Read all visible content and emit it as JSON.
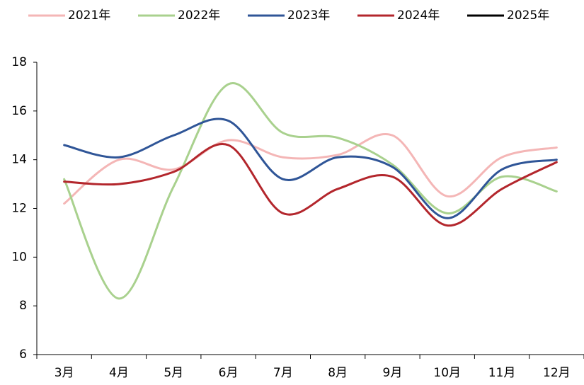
{
  "chart_data": {
    "type": "line",
    "categories": [
      "3月",
      "4月",
      "5月",
      "6月",
      "7月",
      "8月",
      "9月",
      "10月",
      "11月",
      "12月"
    ],
    "series": [
      {
        "name": "2021年",
        "color": "#f4b6b6",
        "values": [
          12.2,
          14.0,
          13.6,
          14.8,
          14.1,
          14.2,
          15.0,
          12.5,
          14.1,
          14.5
        ]
      },
      {
        "name": "2022年",
        "color": "#a9d18e",
        "values": [
          13.2,
          8.3,
          12.9,
          17.1,
          15.1,
          14.9,
          13.8,
          11.8,
          13.3,
          12.7
        ]
      },
      {
        "name": "2023年",
        "color": "#2f5597",
        "values": [
          14.6,
          14.1,
          15.0,
          15.6,
          13.2,
          14.1,
          13.7,
          11.6,
          13.6,
          14.0
        ]
      },
      {
        "name": "2024年",
        "color": "#b3262c",
        "values": [
          13.1,
          13.0,
          13.5,
          14.6,
          11.8,
          12.8,
          13.3,
          11.3,
          12.8,
          13.9
        ]
      },
      {
        "name": "2025年",
        "color": "#000000",
        "values": [
          null,
          null,
          null,
          null,
          null,
          null,
          null,
          null,
          null,
          null
        ]
      }
    ],
    "ylim": [
      6,
      18
    ],
    "yticks": [
      6,
      8,
      10,
      12,
      14,
      16,
      18
    ],
    "legend": "top",
    "grid": false
  }
}
